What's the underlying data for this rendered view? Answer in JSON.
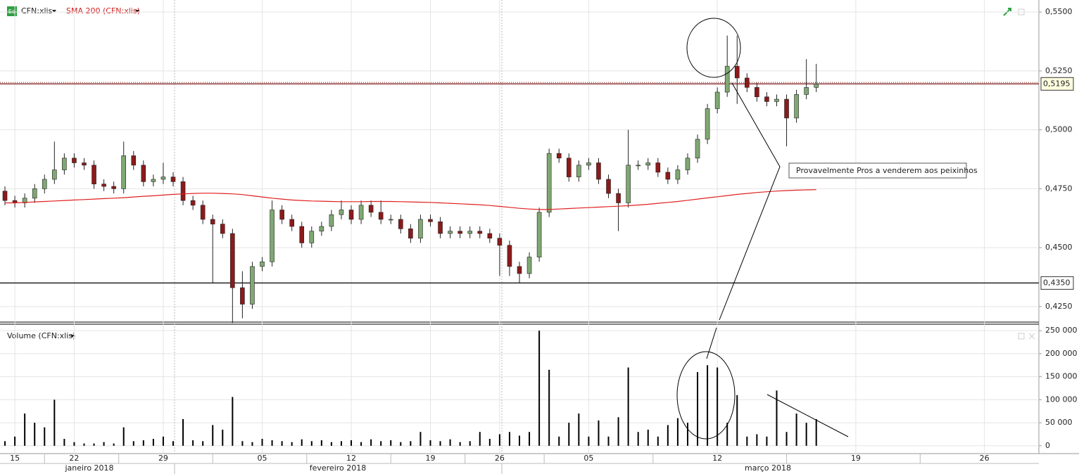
{
  "toolbar": {
    "icon": "Eq"
  },
  "annotation": "Provavelmente Pros a venderem aos peixinhos",
  "chart_data": [
    {
      "type": "candlestick",
      "ylim": [
        0.4184,
        0.5551
      ],
      "yticks": [
        {
          "value": 0.55,
          "label": "0,5500"
        },
        {
          "value": 0.525,
          "label": "0,5250"
        },
        {
          "value": 0.5,
          "label": "0,5000"
        },
        {
          "value": 0.475,
          "label": "0,4750"
        },
        {
          "value": 0.45,
          "label": "0,4500"
        },
        {
          "value": 0.425,
          "label": "0,4250"
        }
      ],
      "grid": true,
      "hlines": [
        {
          "value": 0.5195,
          "label": "0,5195",
          "color": "#7a1010",
          "fill": "#ffffe0"
        },
        {
          "value": 0.435,
          "label": "0,4350",
          "color": "#000000",
          "fill": "#ffffff"
        }
      ],
      "series": [
        {
          "name": "CFN:xlis",
          "type": "candlestick",
          "up_color": "#7fa872",
          "down_color": "#8b1a1a",
          "open": [
            0.474,
            0.47,
            0.469,
            0.471,
            0.475,
            0.479,
            0.483,
            0.488,
            0.486,
            0.485,
            0.477,
            0.476,
            0.475,
            0.489,
            0.485,
            0.478,
            0.479,
            0.48,
            0.478,
            0.47,
            0.468,
            0.462,
            0.46,
            0.456,
            0.433,
            0.426,
            0.442,
            0.444,
            0.466,
            0.462,
            0.459,
            0.452,
            0.457,
            0.459,
            0.464,
            0.466,
            0.462,
            0.468,
            0.465,
            0.462,
            0.462,
            0.458,
            0.454,
            0.462,
            0.461,
            0.456,
            0.457,
            0.456,
            0.457,
            0.456,
            0.454,
            0.451,
            0.442,
            0.439,
            0.446,
            0.465,
            0.49,
            0.488,
            0.48,
            0.485,
            0.486,
            0.479,
            0.473,
            0.469,
            0.485,
            0.485,
            0.486,
            0.482,
            0.479,
            0.483,
            0.488,
            0.496,
            0.509,
            0.516,
            0.527,
            0.522,
            0.518,
            0.514,
            0.512,
            0.513,
            0.505,
            0.515,
            0.518,
            null,
            null,
            null,
            null,
            null,
            null,
            null,
            null,
            null,
            null,
            null,
            null,
            null,
            null,
            null,
            null,
            null,
            null,
            null,
            null,
            null,
            null
          ],
          "high": [
            0.476,
            0.472,
            0.473,
            0.477,
            0.481,
            0.495,
            0.49,
            0.49,
            0.488,
            0.487,
            0.479,
            0.478,
            0.495,
            0.491,
            0.487,
            0.481,
            0.486,
            0.482,
            0.48,
            0.472,
            0.47,
            0.464,
            0.462,
            0.458,
            0.44,
            0.444,
            0.446,
            0.47,
            0.468,
            0.464,
            0.461,
            0.459,
            0.461,
            0.466,
            0.47,
            0.468,
            0.47,
            0.47,
            0.47,
            0.464,
            0.464,
            0.46,
            0.464,
            0.464,
            0.463,
            0.459,
            0.459,
            0.459,
            0.459,
            0.458,
            0.456,
            0.453,
            0.444,
            0.448,
            0.467,
            0.492,
            0.492,
            0.49,
            0.487,
            0.488,
            0.488,
            0.481,
            0.475,
            0.5,
            0.487,
            0.488,
            0.488,
            0.484,
            0.485,
            0.49,
            0.498,
            0.511,
            0.518,
            0.54,
            0.54,
            0.524,
            0.52,
            0.516,
            0.515,
            0.515,
            0.517,
            0.53,
            0.528,
            null,
            null,
            null,
            null,
            null,
            null,
            null,
            null,
            null,
            null,
            null,
            null,
            null,
            null,
            null,
            null,
            null,
            null,
            null,
            null,
            null,
            null
          ],
          "low": [
            0.468,
            0.467,
            0.467,
            0.469,
            0.473,
            0.477,
            0.481,
            0.484,
            0.483,
            0.475,
            0.474,
            0.473,
            0.473,
            0.483,
            0.476,
            0.476,
            0.477,
            0.476,
            0.468,
            0.466,
            0.46,
            0.435,
            0.454,
            0.418,
            0.42,
            0.424,
            0.44,
            0.442,
            0.46,
            0.457,
            0.45,
            0.45,
            0.455,
            0.457,
            0.462,
            0.46,
            0.46,
            0.463,
            0.46,
            0.46,
            0.456,
            0.452,
            0.452,
            0.459,
            0.454,
            0.454,
            0.454,
            0.454,
            0.454,
            0.452,
            0.438,
            0.438,
            0.435,
            0.437,
            0.444,
            0.463,
            0.486,
            0.478,
            0.478,
            0.483,
            0.477,
            0.471,
            0.457,
            0.467,
            0.483,
            0.483,
            0.48,
            0.477,
            0.477,
            0.481,
            0.486,
            0.494,
            0.507,
            0.514,
            0.511,
            0.516,
            0.512,
            0.51,
            0.51,
            0.493,
            0.503,
            0.513,
            0.516,
            null,
            null,
            null,
            null,
            null,
            null,
            null,
            null,
            null,
            null,
            null,
            null,
            null,
            null,
            null,
            null,
            null,
            null,
            null,
            null,
            null,
            null
          ],
          "close": [
            0.47,
            0.469,
            0.471,
            0.475,
            0.479,
            0.483,
            0.488,
            0.486,
            0.485,
            0.477,
            0.476,
            0.475,
            0.489,
            0.485,
            0.478,
            0.479,
            0.48,
            0.478,
            0.47,
            0.468,
            0.462,
            0.46,
            0.456,
            0.433,
            0.426,
            0.442,
            0.444,
            0.466,
            0.462,
            0.459,
            0.452,
            0.457,
            0.459,
            0.464,
            0.466,
            0.462,
            0.468,
            0.465,
            0.462,
            0.462,
            0.458,
            0.454,
            0.462,
            0.461,
            0.456,
            0.457,
            0.456,
            0.457,
            0.456,
            0.454,
            0.451,
            0.442,
            0.439,
            0.446,
            0.465,
            0.49,
            0.488,
            0.48,
            0.485,
            0.486,
            0.479,
            0.473,
            0.469,
            0.485,
            0.485,
            0.486,
            0.482,
            0.479,
            0.483,
            0.488,
            0.496,
            0.509,
            0.516,
            0.527,
            0.522,
            0.518,
            0.514,
            0.512,
            0.513,
            0.505,
            0.515,
            0.518,
            0.5195,
            null,
            null,
            null,
            null,
            null,
            null,
            null,
            null,
            null,
            null,
            null,
            null,
            null,
            null,
            null,
            null,
            null,
            null,
            null,
            null,
            null,
            null
          ]
        },
        {
          "name": "SMA 200 (CFN:xlis)",
          "type": "line",
          "color": "#e02020",
          "values": [
            0.469,
            0.469,
            0.4692,
            0.4694,
            0.4696,
            0.4698,
            0.47,
            0.4702,
            0.4704,
            0.4706,
            0.4708,
            0.471,
            0.4712,
            0.4715,
            0.4718,
            0.472,
            0.4723,
            0.4726,
            0.4728,
            0.473,
            0.4731,
            0.4731,
            0.473,
            0.4728,
            0.4725,
            0.472,
            0.4715,
            0.471,
            0.4706,
            0.4702,
            0.47,
            0.4698,
            0.4697,
            0.4696,
            0.4695,
            0.4695,
            0.4695,
            0.4696,
            0.4696,
            0.4696,
            0.4695,
            0.4694,
            0.4693,
            0.4692,
            0.469,
            0.4688,
            0.4686,
            0.4684,
            0.4682,
            0.4679,
            0.4675,
            0.4671,
            0.4667,
            0.4664,
            0.4662,
            0.4662,
            0.4664,
            0.4666,
            0.4668,
            0.467,
            0.4672,
            0.4674,
            0.4676,
            0.4678,
            0.4681,
            0.4684,
            0.4688,
            0.4692,
            0.4696,
            0.4701,
            0.4706,
            0.4711,
            0.4716,
            0.4721,
            0.4726,
            0.473,
            0.4734,
            0.4737,
            0.474,
            0.4742,
            0.4744,
            0.4745,
            0.4746,
            null,
            null,
            null,
            null,
            null,
            null,
            null,
            null,
            null,
            null,
            null,
            null,
            null,
            null,
            null,
            null,
            null,
            null,
            null,
            null,
            null,
            null
          ]
        }
      ]
    },
    {
      "type": "bar",
      "ylim": [
        -17000,
        264000
      ],
      "yticks": [
        {
          "value": 250000,
          "label": "250 000"
        },
        {
          "value": 200000,
          "label": "200 000"
        },
        {
          "value": 150000,
          "label": "150 000"
        },
        {
          "value": 100000,
          "label": "100 000"
        },
        {
          "value": 50000,
          "label": "50 000"
        },
        0
      ],
      "categories": [
        null,
        "15",
        null,
        null,
        null,
        null,
        null,
        "22",
        null,
        null,
        null,
        null,
        null,
        null,
        null,
        null,
        "29",
        null,
        null,
        null,
        null,
        null,
        null,
        null,
        null,
        null,
        "05",
        null,
        null,
        null,
        null,
        null,
        null,
        null,
        null,
        "12",
        null,
        null,
        null,
        null,
        null,
        null,
        null,
        "19",
        null,
        null,
        null,
        null,
        null,
        null,
        "26",
        null,
        null,
        null,
        null,
        null,
        null,
        null,
        null,
        "05",
        null,
        null,
        null,
        null,
        null,
        null,
        null,
        null,
        null,
        null,
        null,
        null,
        "12",
        null,
        null,
        null,
        null,
        null,
        null,
        null,
        null,
        null,
        null,
        null,
        null,
        null,
        "19",
        null,
        null,
        null,
        null,
        null,
        null,
        null,
        null,
        null,
        null,
        null,
        null,
        "26",
        null,
        null,
        null,
        null,
        null
      ],
      "months": [
        "janeiro 2018",
        "fevereiro 2018",
        "março 2018"
      ],
      "series": [
        {
          "name": "Volume (CFN:xlis)",
          "color": "#000000",
          "values": [
            10000,
            20000,
            70000,
            50000,
            40000,
            100000,
            15000,
            8000,
            5000,
            5000,
            8000,
            5000,
            40000,
            10000,
            12000,
            15000,
            20000,
            10000,
            58000,
            12000,
            10000,
            45000,
            35000,
            106000,
            10000,
            8000,
            15000,
            12000,
            10000,
            8000,
            14000,
            10000,
            12000,
            8000,
            10000,
            12000,
            8000,
            14000,
            10000,
            12000,
            8000,
            10000,
            30000,
            12000,
            10000,
            14000,
            8000,
            10000,
            30000,
            15000,
            25000,
            30000,
            22000,
            30000,
            250000,
            165000,
            20000,
            50000,
            70000,
            20000,
            55000,
            20000,
            62000,
            170000,
            30000,
            35000,
            20000,
            45000,
            60000,
            50000,
            160000,
            175000,
            170000,
            50000,
            110000,
            20000,
            25000,
            20000,
            120000,
            30000,
            70000,
            50000,
            58000,
            null,
            null,
            null,
            null,
            null,
            null,
            null,
            null,
            null,
            null,
            null,
            null,
            null,
            null,
            null,
            null,
            null,
            null,
            null,
            null,
            null,
            null
          ]
        }
      ]
    }
  ]
}
